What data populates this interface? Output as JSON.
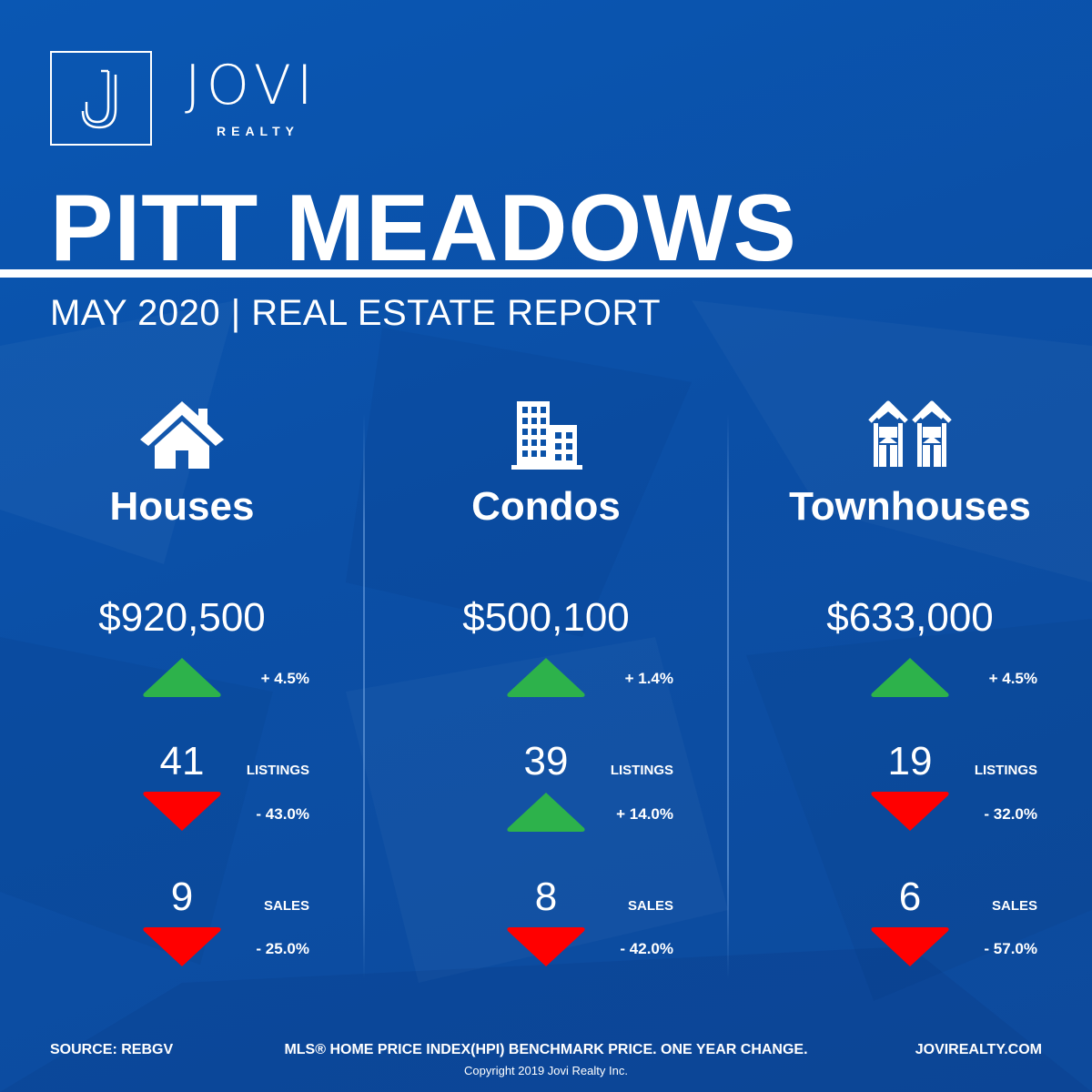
{
  "brand": {
    "name": "JOVI",
    "sub": "REALTY",
    "logo_letter": "J"
  },
  "title": "PITT MEADOWS",
  "subtitle": "MAY 2020 | REAL ESTATE REPORT",
  "colors": {
    "background": "#0b52a8",
    "up": "#2db24b",
    "down": "#ff0000",
    "text": "#ffffff"
  },
  "columns": [
    {
      "icon": "house-icon",
      "title": "Houses",
      "price": "$920,500",
      "price_change": {
        "direction": "up",
        "text": "+ 4.5%"
      },
      "listings": {
        "count": "41",
        "label": "LISTINGS",
        "direction": "down",
        "text": "- 43.0%"
      },
      "sales": {
        "count": "9",
        "label": "SALES",
        "direction": "down",
        "text": "- 25.0%"
      }
    },
    {
      "icon": "building-icon",
      "title": "Condos",
      "price": "$500,100",
      "price_change": {
        "direction": "up",
        "text": "+ 1.4%"
      },
      "listings": {
        "count": "39",
        "label": "LISTINGS",
        "direction": "up",
        "text": "+ 14.0%"
      },
      "sales": {
        "count": "8",
        "label": "SALES",
        "direction": "down",
        "text": "- 42.0%"
      }
    },
    {
      "icon": "townhouse-icon",
      "title": "Townhouses",
      "price": "$633,000",
      "price_change": {
        "direction": "up",
        "text": "+ 4.5%"
      },
      "listings": {
        "count": "19",
        "label": "LISTINGS",
        "direction": "down",
        "text": "- 32.0%"
      },
      "sales": {
        "count": "6",
        "label": "SALES",
        "direction": "down",
        "text": "- 57.0%"
      }
    }
  ],
  "footer": {
    "source": "SOURCE:  REBGV",
    "note": "MLS® HOME PRICE INDEX(HPI) BENCHMARK PRICE. ONE YEAR CHANGE.",
    "website": "JOVIREALTY.COM",
    "copyright": "Copyright 2019 Jovi Realty Inc."
  }
}
